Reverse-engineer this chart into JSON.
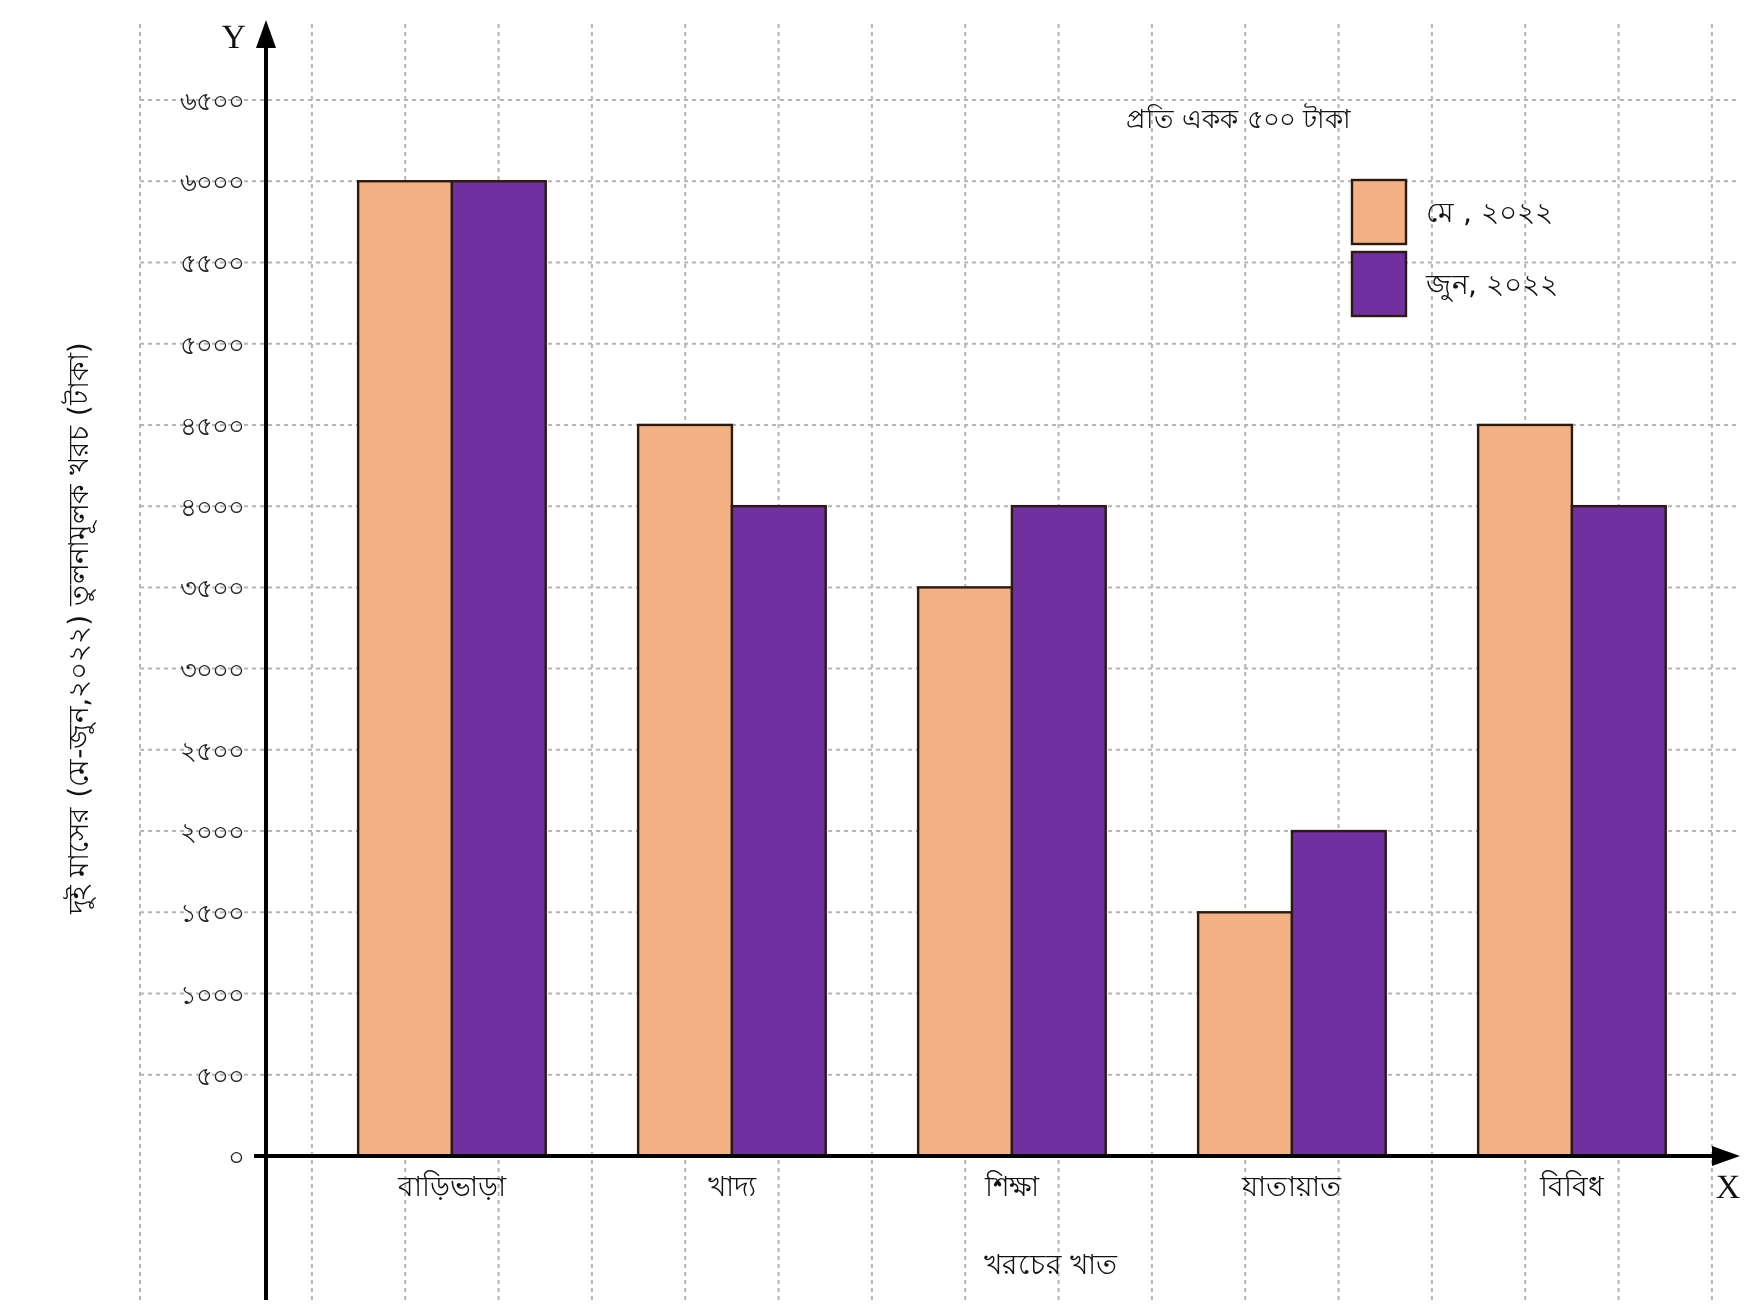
{
  "chart_data": {
    "type": "bar",
    "categories": [
      "বাড়িভাড়া",
      "খাদ্য",
      "শিক্ষা",
      "যাতায়াত",
      "বিবিধ"
    ],
    "series": [
      {
        "name": "মে , ২০২২",
        "color": "#f4b183",
        "values": [
          6000,
          4500,
          3500,
          1500,
          4500
        ]
      },
      {
        "name": "জুন, ২০২২",
        "color": "#7030a0",
        "values": [
          6000,
          4000,
          4000,
          2000,
          4000
        ]
      }
    ],
    "xlabel": "খরচের খাত",
    "ylabel": "দুই মাসের (মে-জুন,২০২২) তুলনামূলক খরচ (টাকা)",
    "ylim": [
      0,
      6500
    ],
    "yticks": [
      {
        "value": 0,
        "label": "০"
      },
      {
        "value": 500,
        "label": "৫০০"
      },
      {
        "value": 1000,
        "label": "১০০০"
      },
      {
        "value": 1500,
        "label": "১৫০০"
      },
      {
        "value": 2000,
        "label": "২০০০"
      },
      {
        "value": 2500,
        "label": "২৫০০"
      },
      {
        "value": 3000,
        "label": "৩০০০"
      },
      {
        "value": 3500,
        "label": "৩৫০০"
      },
      {
        "value": 4000,
        "label": "৪০০০"
      },
      {
        "value": 4500,
        "label": "৪৫০০"
      },
      {
        "value": 5000,
        "label": "৫০০০"
      },
      {
        "value": 5500,
        "label": "৫৫০০"
      },
      {
        "value": 6000,
        "label": "৬০০০"
      },
      {
        "value": 6500,
        "label": "৬৫০০"
      }
    ],
    "grid": true,
    "legend": "top right",
    "annotations": [
      "প্রতি একক ৫০০ টাকা",
      "Y",
      "X"
    ]
  }
}
